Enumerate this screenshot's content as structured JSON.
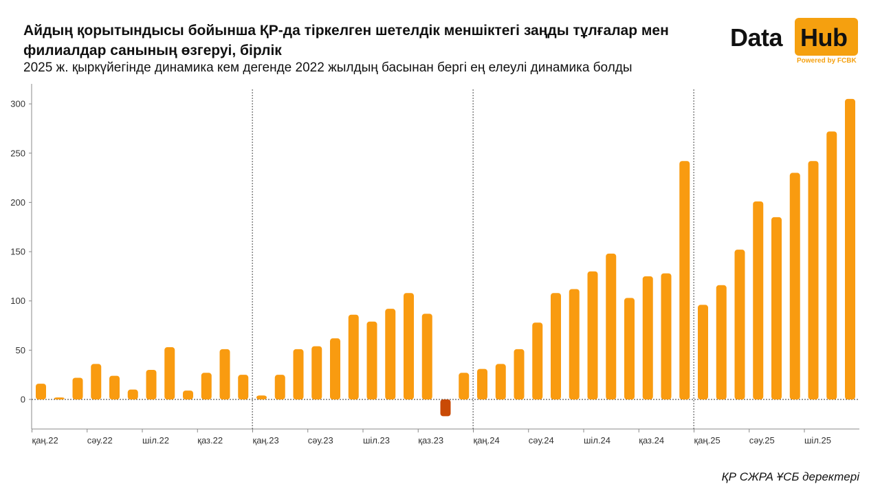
{
  "header": {
    "title": "Айдың қорытындысы бойынша ҚР-да тіркелген шетелдік меншіктегі заңды тұлғалар мен филиалдар санының өзгеруі, бірлік",
    "subtitle": "2025 ж. қыркүйегінде динамика кем дегенде 2022 жылдың басынан бергі ең елеулі динамика болды"
  },
  "logo": {
    "data": "Data",
    "hub": "Hub",
    "powered": "Powered by FCBK"
  },
  "source": "ҚР СЖРА ҰСБ деректері",
  "colors": {
    "positive": "#f99b10",
    "negative": "#c94a05",
    "axis": "#555555"
  },
  "chart_data": {
    "type": "bar",
    "title": "Айдың қорытындысы бойынша ҚР-да тіркелген шетелдік меншіктегі заңды тұлғалар мен филиалдар санының өзгеруі, бірлік",
    "xlabel": "",
    "ylabel": "",
    "ylim": [
      -20,
      320
    ],
    "yticks": [
      0,
      50,
      100,
      150,
      200,
      250,
      300
    ],
    "months": [
      "2022-01",
      "2022-02",
      "2022-03",
      "2022-04",
      "2022-05",
      "2022-06",
      "2022-07",
      "2022-08",
      "2022-09",
      "2022-10",
      "2022-11",
      "2022-12",
      "2023-01",
      "2023-02",
      "2023-03",
      "2023-04",
      "2023-05",
      "2023-06",
      "2023-07",
      "2023-08",
      "2023-09",
      "2023-10",
      "2023-11",
      "2023-12",
      "2024-01",
      "2024-02",
      "2024-03",
      "2024-04",
      "2024-05",
      "2024-06",
      "2024-07",
      "2024-08",
      "2024-09",
      "2024-10",
      "2024-11",
      "2024-12",
      "2025-01",
      "2025-02",
      "2025-03",
      "2025-04",
      "2025-05",
      "2025-06",
      "2025-07",
      "2025-08",
      "2025-09"
    ],
    "values": [
      16,
      2,
      22,
      36,
      24,
      10,
      30,
      53,
      9,
      27,
      51,
      25,
      4,
      25,
      51,
      54,
      62,
      86,
      79,
      92,
      108,
      87,
      -17,
      27,
      31,
      36,
      51,
      78,
      108,
      112,
      130,
      148,
      103,
      125,
      128,
      242,
      96,
      116,
      152,
      201,
      185,
      230,
      242,
      272,
      305
    ],
    "xtick_labels": [
      {
        "index": 0,
        "label": "қаң.22"
      },
      {
        "index": 3,
        "label": "сәу.22"
      },
      {
        "index": 6,
        "label": "шіл.22"
      },
      {
        "index": 9,
        "label": "қаз.22"
      },
      {
        "index": 12,
        "label": "қаң.23"
      },
      {
        "index": 15,
        "label": "сәу.23"
      },
      {
        "index": 18,
        "label": "шіл.23"
      },
      {
        "index": 21,
        "label": "қаз.23"
      },
      {
        "index": 24,
        "label": "қаң.24"
      },
      {
        "index": 27,
        "label": "сәу.24"
      },
      {
        "index": 30,
        "label": "шіл.24"
      },
      {
        "index": 33,
        "label": "қаз.24"
      },
      {
        "index": 36,
        "label": "қаң.25"
      },
      {
        "index": 39,
        "label": "сәу.25"
      },
      {
        "index": 42,
        "label": "шіл.25"
      }
    ],
    "year_separators_before_index": [
      12,
      24,
      36
    ],
    "legend": "none",
    "grid": false
  }
}
